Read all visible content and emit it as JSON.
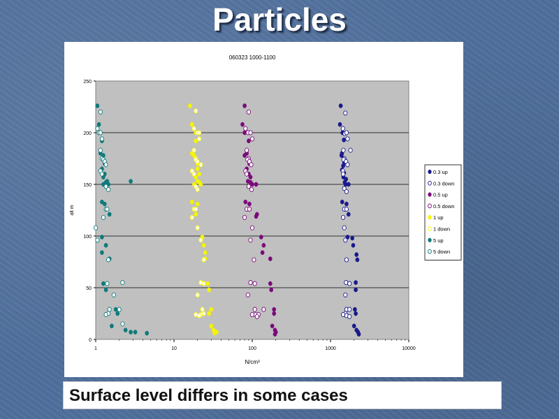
{
  "slide": {
    "title": "Particles",
    "caption": "Surface level differs in some cases"
  },
  "colors": {
    "background": "#4f6f9c",
    "plot_area": "#c0c0c0"
  },
  "chart_data": {
    "type": "scatter",
    "title": "060323 1000-1100",
    "xlabel": "N/cm³",
    "ylabel": "alt m",
    "xscale": "log",
    "xlim": [
      1,
      10000
    ],
    "ylim": [
      0,
      250
    ],
    "xticks": [
      "1",
      "10",
      "100",
      "1000",
      "10000"
    ],
    "yticks": [
      "0",
      "50",
      "100",
      "150",
      "200",
      "250"
    ],
    "grid": "horizontal major lines",
    "legend_position": "right",
    "series": [
      {
        "name": "0.3 up",
        "color": "#1a1a8c",
        "marker": "filled",
        "points": [
          [
            1350,
            226
          ],
          [
            1320,
            208
          ],
          [
            1420,
            200
          ],
          [
            1480,
            193
          ],
          [
            1400,
            180
          ],
          [
            1380,
            178
          ],
          [
            1500,
            171
          ],
          [
            1450,
            168
          ],
          [
            1400,
            164
          ],
          [
            1490,
            161
          ],
          [
            1460,
            157
          ],
          [
            1580,
            155
          ],
          [
            1520,
            152
          ],
          [
            1560,
            150
          ],
          [
            1700,
            150
          ],
          [
            1410,
            133
          ],
          [
            1600,
            131
          ],
          [
            1700,
            121
          ],
          [
            1650,
            99
          ],
          [
            1950,
            91
          ],
          [
            1900,
            98
          ],
          [
            2150,
            82
          ],
          [
            2200,
            77
          ],
          [
            2100,
            55
          ],
          [
            2100,
            48
          ],
          [
            2050,
            29
          ],
          [
            2100,
            25
          ],
          [
            2000,
            13
          ],
          [
            2150,
            9
          ],
          [
            2250,
            7
          ],
          [
            2300,
            5
          ]
        ]
      },
      {
        "name": "0.3 down",
        "color": "#1a1a8c",
        "marker": "open",
        "points": [
          [
            1550,
            219
          ],
          [
            1440,
            204
          ],
          [
            1520,
            199
          ],
          [
            1600,
            200
          ],
          [
            1650,
            194
          ],
          [
            1460,
            183
          ],
          [
            1500,
            175
          ],
          [
            1470,
            174
          ],
          [
            1580,
            172
          ],
          [
            1650,
            169
          ],
          [
            1440,
            163
          ],
          [
            1450,
            160
          ],
          [
            1800,
            183
          ],
          [
            1500,
            146
          ],
          [
            1600,
            143
          ],
          [
            1500,
            126
          ],
          [
            1600,
            126
          ],
          [
            1450,
            118
          ],
          [
            1500,
            108
          ],
          [
            1550,
            96
          ],
          [
            1600,
            77
          ],
          [
            1580,
            55
          ],
          [
            1750,
            54
          ],
          [
            1550,
            43
          ],
          [
            1600,
            29
          ],
          [
            1750,
            29
          ],
          [
            1550,
            25
          ],
          [
            1450,
            24
          ],
          [
            1600,
            23
          ],
          [
            1750,
            22
          ]
        ]
      },
      {
        "name": "0.5 up",
        "color": "#7b0a7b",
        "marker": "filled",
        "points": [
          [
            80,
            226
          ],
          [
            75,
            208
          ],
          [
            80,
            200
          ],
          [
            90,
            192
          ],
          [
            85,
            180
          ],
          [
            80,
            178
          ],
          [
            92,
            170
          ],
          [
            85,
            165
          ],
          [
            90,
            160
          ],
          [
            95,
            157
          ],
          [
            88,
            153
          ],
          [
            95,
            152
          ],
          [
            100,
            150
          ],
          [
            112,
            150
          ],
          [
            82,
            133
          ],
          [
            92,
            131
          ],
          [
            115,
            121
          ],
          [
            112,
            119
          ],
          [
            130,
            99
          ],
          [
            140,
            91
          ],
          [
            135,
            84
          ],
          [
            170,
            78
          ],
          [
            170,
            54
          ],
          [
            175,
            48
          ],
          [
            190,
            29
          ],
          [
            190,
            25
          ],
          [
            180,
            13
          ],
          [
            195,
            9
          ],
          [
            200,
            7
          ],
          [
            195,
            5
          ]
        ]
      },
      {
        "name": "0.5 down",
        "color": "#7b0a7b",
        "marker": "open",
        "points": [
          [
            90,
            220
          ],
          [
            82,
            204
          ],
          [
            88,
            200
          ],
          [
            95,
            200
          ],
          [
            100,
            194
          ],
          [
            85,
            183
          ],
          [
            90,
            175
          ],
          [
            87,
            174
          ],
          [
            92,
            172
          ],
          [
            97,
            169
          ],
          [
            82,
            163
          ],
          [
            85,
            160
          ],
          [
            90,
            148
          ],
          [
            98,
            145
          ],
          [
            85,
            126
          ],
          [
            92,
            126
          ],
          [
            80,
            118
          ],
          [
            100,
            108
          ],
          [
            95,
            96
          ],
          [
            105,
            77
          ],
          [
            95,
            55
          ],
          [
            108,
            54
          ],
          [
            88,
            43
          ],
          [
            108,
            29
          ],
          [
            110,
            24
          ],
          [
            100,
            24
          ],
          [
            120,
            24
          ],
          [
            140,
            29
          ],
          [
            115,
            22
          ]
        ]
      },
      {
        "name": "1 up",
        "color": "#f5f500",
        "marker": "filled",
        "points": [
          [
            16,
            226
          ],
          [
            17,
            208
          ],
          [
            19,
            200
          ],
          [
            19,
            192
          ],
          [
            17,
            180
          ],
          [
            18,
            178
          ],
          [
            20,
            170
          ],
          [
            20,
            165
          ],
          [
            21,
            160
          ],
          [
            19,
            157
          ],
          [
            20,
            153
          ],
          [
            21,
            152
          ],
          [
            22,
            150
          ],
          [
            18,
            150
          ],
          [
            17,
            133
          ],
          [
            20,
            131
          ],
          [
            19,
            121
          ],
          [
            23,
            99
          ],
          [
            24,
            91
          ],
          [
            25,
            84
          ],
          [
            25,
            78
          ],
          [
            27,
            54
          ],
          [
            28,
            48
          ],
          [
            30,
            29
          ],
          [
            28,
            25
          ],
          [
            30,
            13
          ],
          [
            32,
            9
          ],
          [
            35,
            7
          ],
          [
            33,
            6
          ]
        ]
      },
      {
        "name": "1 down",
        "color": "#f5f500",
        "marker": "open",
        "points": [
          [
            19,
            221
          ],
          [
            18,
            204
          ],
          [
            20,
            200
          ],
          [
            21,
            200
          ],
          [
            21,
            194
          ],
          [
            18,
            183
          ],
          [
            19,
            175
          ],
          [
            19,
            174
          ],
          [
            20,
            172
          ],
          [
            22,
            169
          ],
          [
            17,
            163
          ],
          [
            18,
            160
          ],
          [
            19,
            148
          ],
          [
            20,
            145
          ],
          [
            18,
            126
          ],
          [
            19,
            126
          ],
          [
            17,
            118
          ],
          [
            20,
            108
          ],
          [
            22,
            96
          ],
          [
            24,
            77
          ],
          [
            22,
            55
          ],
          [
            24,
            54
          ],
          [
            20,
            43
          ],
          [
            23,
            29
          ],
          [
            24,
            25
          ],
          [
            22,
            24
          ],
          [
            19,
            24
          ],
          [
            21,
            23
          ]
        ]
      },
      {
        "name": "5 up",
        "color": "#0f7a7a",
        "marker": "filled",
        "points": [
          [
            1.05,
            226
          ],
          [
            1.1,
            208
          ],
          [
            1.15,
            200
          ],
          [
            1.2,
            192
          ],
          [
            1.15,
            180
          ],
          [
            1.25,
            178
          ],
          [
            1.3,
            170
          ],
          [
            1.2,
            165
          ],
          [
            1.3,
            160
          ],
          [
            1.25,
            157
          ],
          [
            1.4,
            153
          ],
          [
            1.35,
            152
          ],
          [
            1.45,
            150
          ],
          [
            1.25,
            150
          ],
          [
            2.8,
            153
          ],
          [
            1.2,
            133
          ],
          [
            1.3,
            131
          ],
          [
            1.5,
            121
          ],
          [
            1.2,
            99
          ],
          [
            1.35,
            91
          ],
          [
            1.2,
            84
          ],
          [
            1.5,
            78
          ],
          [
            1.25,
            54
          ],
          [
            1.35,
            48
          ],
          [
            1.8,
            29
          ],
          [
            1.9,
            25
          ],
          [
            1.6,
            13
          ],
          [
            2.4,
            9
          ],
          [
            2.8,
            7
          ],
          [
            3.2,
            7
          ],
          [
            4.5,
            6
          ]
        ]
      },
      {
        "name": "5 down",
        "color": "#0f7a7a",
        "marker": "open",
        "points": [
          [
            1.15,
            220
          ],
          [
            1.05,
            204
          ],
          [
            1.1,
            200
          ],
          [
            1.15,
            200
          ],
          [
            1.2,
            194
          ],
          [
            1.15,
            183
          ],
          [
            1.2,
            175
          ],
          [
            1.25,
            174
          ],
          [
            1.3,
            172
          ],
          [
            1.35,
            169
          ],
          [
            1.15,
            163
          ],
          [
            1.2,
            160
          ],
          [
            1.35,
            148
          ],
          [
            1.45,
            145
          ],
          [
            1.35,
            126
          ],
          [
            1.4,
            126
          ],
          [
            1.25,
            118
          ],
          [
            1.0,
            108
          ],
          [
            1.05,
            96
          ],
          [
            1.45,
            77
          ],
          [
            2.2,
            55
          ],
          [
            1.4,
            54
          ],
          [
            1.7,
            43
          ],
          [
            1.5,
            29
          ],
          [
            1.45,
            25
          ],
          [
            1.35,
            24
          ],
          [
            2.0,
            29
          ],
          [
            2.2,
            15
          ]
        ]
      }
    ]
  }
}
